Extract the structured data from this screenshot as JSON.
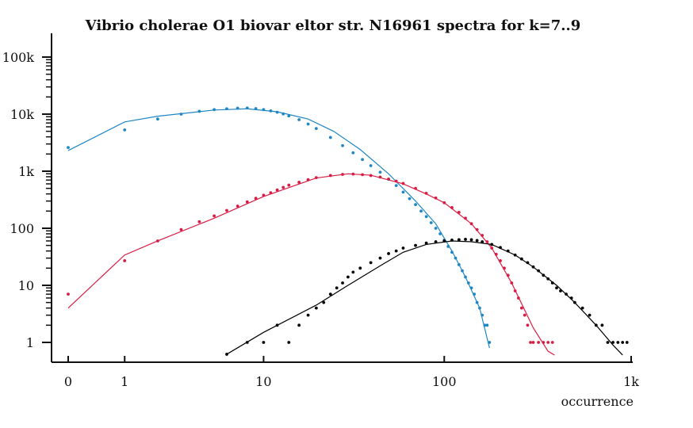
{
  "chart_data": {
    "type": "scatter",
    "title": "Vibrio cholerae O1 biovar eltor str. N16961 spectra for k=7..9",
    "xlabel": "occurrence",
    "ylabel": "",
    "x_scale": "log",
    "y_scale": "log",
    "xlim": [
      0,
      1000
    ],
    "ylim": [
      1,
      100000
    ],
    "x_ticks": [
      {
        "value": 0,
        "label": "0"
      },
      {
        "value": 1,
        "label": "1"
      },
      {
        "value": 10,
        "label": "10"
      },
      {
        "value": 100,
        "label": "100"
      },
      {
        "value": 1000,
        "label": "1k"
      }
    ],
    "y_ticks": [
      {
        "value": 1,
        "label": "1"
      },
      {
        "value": 10,
        "label": "10"
      },
      {
        "value": 100,
        "label": "100"
      },
      {
        "value": 1000,
        "label": "1k"
      },
      {
        "value": 10000,
        "label": "10k"
      },
      {
        "value": 100000,
        "label": "100k"
      }
    ],
    "series": [
      {
        "color": "#1f87c4",
        "points": [
          [
            0,
            2600
          ],
          [
            1,
            5300
          ],
          [
            2,
            8200
          ],
          [
            3,
            10000
          ],
          [
            4,
            11200
          ],
          [
            5,
            12000
          ],
          [
            6,
            12400
          ],
          [
            7,
            12700
          ],
          [
            8,
            12800
          ],
          [
            9,
            12500
          ],
          [
            10,
            12000
          ],
          [
            11,
            11400
          ],
          [
            12,
            10800
          ],
          [
            13,
            10100
          ],
          [
            14,
            9300
          ],
          [
            16,
            8000
          ],
          [
            18,
            6700
          ],
          [
            20,
            5600
          ],
          [
            24,
            3900
          ],
          [
            28,
            2800
          ],
          [
            32,
            2100
          ],
          [
            36,
            1600
          ],
          [
            40,
            1250
          ],
          [
            45,
            960
          ],
          [
            50,
            720
          ],
          [
            55,
            560
          ],
          [
            60,
            430
          ],
          [
            65,
            330
          ],
          [
            70,
            260
          ],
          [
            75,
            200
          ],
          [
            80,
            160
          ],
          [
            85,
            125
          ],
          [
            90,
            100
          ],
          [
            95,
            80
          ],
          [
            100,
            62
          ],
          [
            105,
            48
          ],
          [
            110,
            38
          ],
          [
            115,
            30
          ],
          [
            120,
            23
          ],
          [
            125,
            18
          ],
          [
            130,
            14
          ],
          [
            135,
            11
          ],
          [
            140,
            9
          ],
          [
            145,
            7
          ],
          [
            150,
            5
          ],
          [
            155,
            4
          ],
          [
            160,
            3
          ],
          [
            165,
            2
          ],
          [
            170,
            2
          ],
          [
            175,
            1
          ]
        ],
        "fit": [
          [
            0,
            2300
          ],
          [
            1,
            7300
          ],
          [
            2,
            9200
          ],
          [
            5,
            11800
          ],
          [
            8,
            12400
          ],
          [
            12,
            11000
          ],
          [
            18,
            8200
          ],
          [
            25,
            5000
          ],
          [
            35,
            2400
          ],
          [
            50,
            900
          ],
          [
            70,
            300
          ],
          [
            90,
            120
          ],
          [
            110,
            40
          ],
          [
            130,
            14
          ],
          [
            155,
            4
          ],
          [
            175,
            0.8
          ]
        ]
      },
      {
        "color": "#d81d45",
        "points": [
          [
            0,
            7
          ],
          [
            1,
            27
          ],
          [
            2,
            60
          ],
          [
            3,
            95
          ],
          [
            4,
            130
          ],
          [
            5,
            165
          ],
          [
            6,
            205
          ],
          [
            7,
            245
          ],
          [
            8,
            290
          ],
          [
            9,
            335
          ],
          [
            10,
            380
          ],
          [
            11,
            420
          ],
          [
            12,
            470
          ],
          [
            13,
            520
          ],
          [
            14,
            570
          ],
          [
            16,
            640
          ],
          [
            18,
            710
          ],
          [
            20,
            770
          ],
          [
            24,
            840
          ],
          [
            28,
            880
          ],
          [
            32,
            890
          ],
          [
            36,
            870
          ],
          [
            40,
            840
          ],
          [
            45,
            790
          ],
          [
            50,
            730
          ],
          [
            55,
            670
          ],
          [
            60,
            610
          ],
          [
            70,
            500
          ],
          [
            80,
            410
          ],
          [
            90,
            340
          ],
          [
            100,
            280
          ],
          [
            110,
            230
          ],
          [
            120,
            190
          ],
          [
            130,
            150
          ],
          [
            140,
            120
          ],
          [
            150,
            95
          ],
          [
            160,
            75
          ],
          [
            170,
            58
          ],
          [
            180,
            45
          ],
          [
            190,
            35
          ],
          [
            200,
            27
          ],
          [
            210,
            20
          ],
          [
            220,
            15
          ],
          [
            230,
            11
          ],
          [
            240,
            8
          ],
          [
            250,
            6
          ],
          [
            260,
            4
          ],
          [
            270,
            3
          ],
          [
            280,
            2
          ],
          [
            290,
            1
          ],
          [
            300,
            1
          ],
          [
            320,
            1
          ],
          [
            340,
            1
          ],
          [
            360,
            1
          ],
          [
            380,
            1
          ]
        ],
        "fit": [
          [
            0,
            4
          ],
          [
            1,
            34
          ],
          [
            2,
            60
          ],
          [
            5,
            150
          ],
          [
            10,
            360
          ],
          [
            20,
            760
          ],
          [
            30,
            900
          ],
          [
            40,
            850
          ],
          [
            60,
            600
          ],
          [
            80,
            400
          ],
          [
            100,
            280
          ],
          [
            140,
            120
          ],
          [
            180,
            45
          ],
          [
            230,
            11
          ],
          [
            300,
            1.8
          ],
          [
            360,
            0.7
          ],
          [
            390,
            0.6
          ]
        ]
      },
      {
        "color": "#000000",
        "points": [
          [
            6,
            0.62
          ],
          [
            8,
            1
          ],
          [
            10,
            1
          ],
          [
            12,
            2
          ],
          [
            14,
            1
          ],
          [
            16,
            2
          ],
          [
            18,
            3
          ],
          [
            20,
            4
          ],
          [
            22,
            5
          ],
          [
            24,
            7
          ],
          [
            26,
            9
          ],
          [
            28,
            11
          ],
          [
            30,
            14
          ],
          [
            32,
            17
          ],
          [
            35,
            20
          ],
          [
            40,
            25
          ],
          [
            45,
            30
          ],
          [
            50,
            36
          ],
          [
            55,
            40
          ],
          [
            60,
            45
          ],
          [
            70,
            50
          ],
          [
            80,
            55
          ],
          [
            90,
            58
          ],
          [
            100,
            60
          ],
          [
            110,
            62
          ],
          [
            120,
            63
          ],
          [
            130,
            64
          ],
          [
            140,
            63
          ],
          [
            150,
            61
          ],
          [
            160,
            58
          ],
          [
            180,
            52
          ],
          [
            200,
            46
          ],
          [
            220,
            40
          ],
          [
            240,
            34
          ],
          [
            260,
            29
          ],
          [
            280,
            25
          ],
          [
            300,
            21
          ],
          [
            320,
            18
          ],
          [
            340,
            15
          ],
          [
            360,
            13
          ],
          [
            380,
            11
          ],
          [
            400,
            9
          ],
          [
            420,
            8
          ],
          [
            450,
            7
          ],
          [
            480,
            6
          ],
          [
            500,
            5
          ],
          [
            550,
            4
          ],
          [
            600,
            3
          ],
          [
            650,
            2
          ],
          [
            700,
            2
          ],
          [
            750,
            1
          ],
          [
            800,
            1
          ],
          [
            850,
            1
          ],
          [
            900,
            1
          ],
          [
            950,
            1
          ]
        ],
        "fit": [
          [
            6,
            0.62
          ],
          [
            10,
            1.5
          ],
          [
            20,
            4.5
          ],
          [
            30,
            10
          ],
          [
            45,
            22
          ],
          [
            60,
            38
          ],
          [
            80,
            52
          ],
          [
            110,
            60
          ],
          [
            140,
            58
          ],
          [
            180,
            52
          ],
          [
            240,
            34
          ],
          [
            300,
            21
          ],
          [
            400,
            10
          ],
          [
            500,
            5
          ],
          [
            650,
            2
          ],
          [
            800,
            0.9
          ],
          [
            900,
            0.6
          ]
        ]
      }
    ]
  }
}
